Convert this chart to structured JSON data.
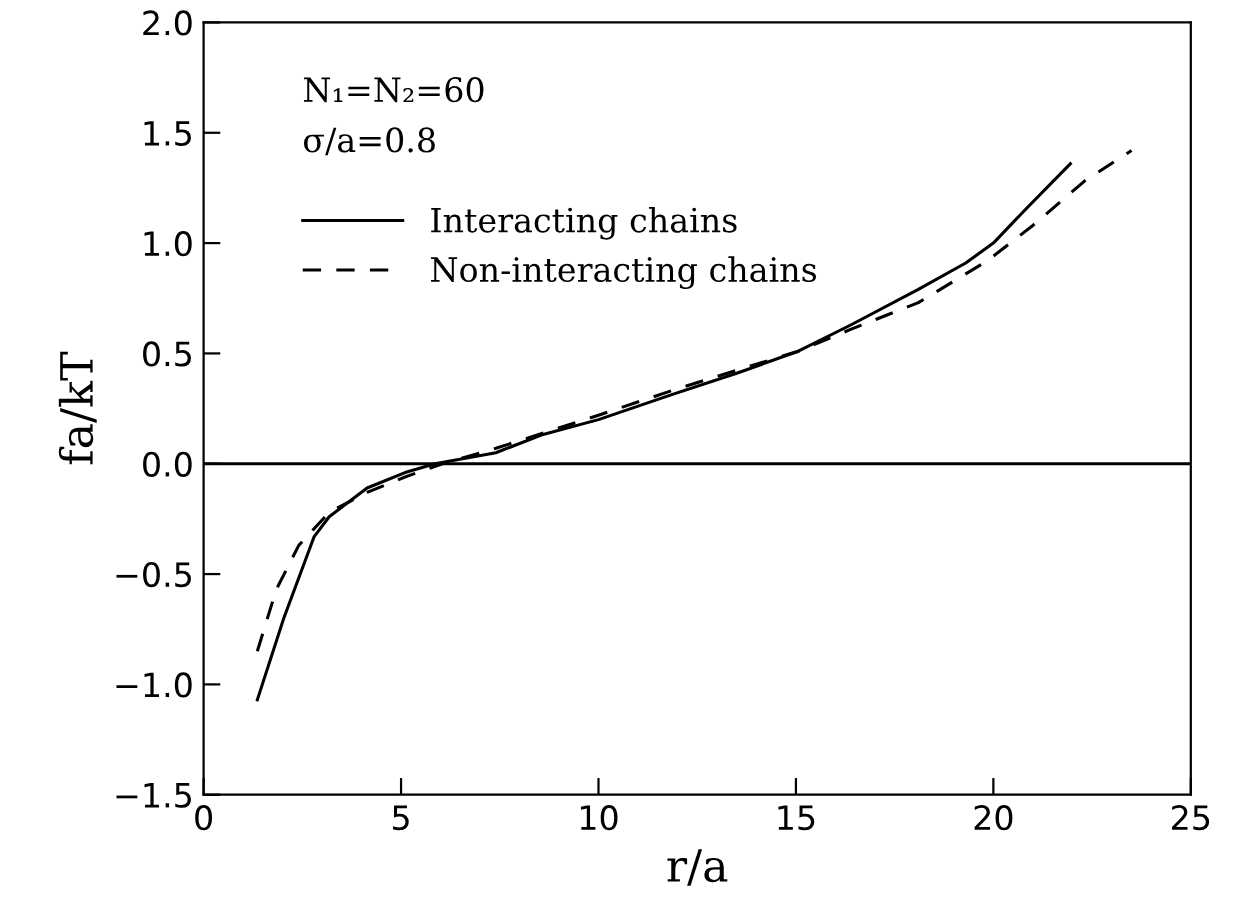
{
  "chart_data": {
    "type": "line",
    "xlabel": "r/a",
    "ylabel": "fa/kT",
    "annotations": [
      "N₁=N₂=60",
      "σ/a=0.8"
    ],
    "xlim": [
      0,
      25
    ],
    "ylim": [
      -1.5,
      2.0
    ],
    "xticks": [
      0,
      5,
      10,
      15,
      20,
      25
    ],
    "yticks": [
      {
        "value": -1.5,
        "label": "−1.5"
      },
      {
        "value": -1,
        "label": "−1.0"
      },
      {
        "value": -0.5,
        "label": "−0.5"
      },
      {
        "value": 0,
        "label": "0.0"
      },
      {
        "value": 0.5,
        "label": "0.5"
      },
      {
        "value": 1,
        "label": "1.0"
      },
      {
        "value": 1.5,
        "label": "1.5"
      },
      {
        "value": 2,
        "label": "2.0"
      }
    ],
    "grid": false,
    "legend": "top left",
    "ref_lines": [
      {
        "axis": "y",
        "value": 0,
        "color": "#000000",
        "line_style": "solid"
      }
    ],
    "series": [
      {
        "name": "Interacting chains",
        "color": "#000000",
        "line_style": "solid",
        "x": [
          1.36,
          2.03,
          2.8,
          3.18,
          4.14,
          5.1,
          5.86,
          7.4,
          8.55,
          10,
          11.8,
          13.5,
          15.06,
          16.4,
          18.1,
          19.3,
          20,
          20.8,
          21.95
        ],
        "values": [
          -1.07,
          -0.7,
          -0.33,
          -0.24,
          -0.11,
          -0.04,
          0.0,
          0.05,
          0.13,
          0.2,
          0.31,
          0.41,
          0.51,
          0.63,
          0.79,
          0.91,
          1.0,
          1.15,
          1.36
        ]
      },
      {
        "name": "Non-interacting chains",
        "color": "#000000",
        "line_style": "dashed",
        "x": [
          1.36,
          1.84,
          2.41,
          3.18,
          4.14,
          5.1,
          6.05,
          7.4,
          10,
          12,
          15.06,
          16.4,
          18.1,
          19.85,
          21,
          22.3,
          23.5
        ],
        "values": [
          -0.85,
          -0.57,
          -0.37,
          -0.22,
          -0.13,
          -0.06,
          0.0,
          0.07,
          0.22,
          0.34,
          0.51,
          0.61,
          0.73,
          0.92,
          1.08,
          1.28,
          1.42
        ]
      }
    ]
  }
}
